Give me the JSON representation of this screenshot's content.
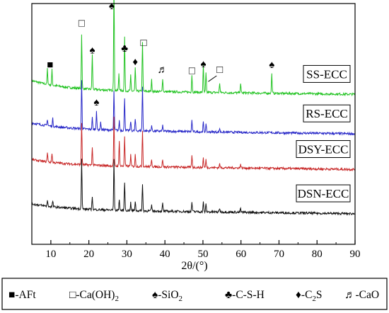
{
  "chart_data": {
    "type": "line",
    "title": "",
    "xlabel": "2θ/(°)",
    "ylabel": "",
    "xlim": [
      5,
      90
    ],
    "xticks": [
      10,
      20,
      30,
      40,
      50,
      60,
      70,
      80,
      90
    ],
    "yticks_shown": false,
    "grid": false,
    "legend_placement": "bottom",
    "series": [
      {
        "name": "SS-ECC",
        "color": "#22c322",
        "baseline": 0.8,
        "decay": 0.05,
        "peaks": [
          [
            9.1,
            0.08
          ],
          [
            10.3,
            0.08
          ],
          [
            18.1,
            0.28
          ],
          [
            20.9,
            0.18
          ],
          [
            26.6,
            0.55
          ],
          [
            27.9,
            0.09
          ],
          [
            29.4,
            0.28
          ],
          [
            31.0,
            0.08
          ],
          [
            32.2,
            0.12
          ],
          [
            34.1,
            0.26
          ],
          [
            36.5,
            0.06
          ],
          [
            39.4,
            0.07
          ],
          [
            47.1,
            0.09
          ],
          [
            50.1,
            0.14
          ],
          [
            50.8,
            0.1
          ],
          [
            54.4,
            0.05
          ],
          [
            59.9,
            0.05
          ],
          [
            68.1,
            0.1
          ]
        ]
      },
      {
        "name": "RS-ECC",
        "color": "#2828c8",
        "baseline": 0.595,
        "decay": 0.035,
        "peaks": [
          [
            9.1,
            0.035
          ],
          [
            10.5,
            0.04
          ],
          [
            18.1,
            0.25
          ],
          [
            20.9,
            0.06
          ],
          [
            22.0,
            0.1
          ],
          [
            23.1,
            0.04
          ],
          [
            26.6,
            0.2
          ],
          [
            28.0,
            0.05
          ],
          [
            29.4,
            0.17
          ],
          [
            31.0,
            0.05
          ],
          [
            32.2,
            0.06
          ],
          [
            34.1,
            0.23
          ],
          [
            36.5,
            0.03
          ],
          [
            39.4,
            0.03
          ],
          [
            47.1,
            0.06
          ],
          [
            50.1,
            0.05
          ],
          [
            50.8,
            0.04
          ],
          [
            54.4,
            0.02
          ]
        ]
      },
      {
        "name": "DSY-ECC",
        "color": "#c82828",
        "baseline": 0.41,
        "decay": 0.03,
        "peaks": [
          [
            9.1,
            0.05
          ],
          [
            10.3,
            0.05
          ],
          [
            18.1,
            0.22
          ],
          [
            20.9,
            0.09
          ],
          [
            26.6,
            0.25
          ],
          [
            28.0,
            0.13
          ],
          [
            29.4,
            0.15
          ],
          [
            31.0,
            0.06
          ],
          [
            32.2,
            0.06
          ],
          [
            34.1,
            0.19
          ],
          [
            36.5,
            0.04
          ],
          [
            39.4,
            0.04
          ],
          [
            47.1,
            0.06
          ],
          [
            50.1,
            0.05
          ],
          [
            50.8,
            0.04
          ],
          [
            54.4,
            0.02
          ],
          [
            59.9,
            0.02
          ]
        ]
      },
      {
        "name": "DSN-ECC",
        "color": "#111111",
        "baseline": 0.18,
        "decay": 0.03,
        "peaks": [
          [
            9.1,
            0.03
          ],
          [
            10.5,
            0.03
          ],
          [
            18.1,
            0.26
          ],
          [
            20.9,
            0.07
          ],
          [
            26.6,
            0.26
          ],
          [
            28.0,
            0.06
          ],
          [
            29.4,
            0.15
          ],
          [
            31.0,
            0.04
          ],
          [
            32.2,
            0.05
          ],
          [
            34.1,
            0.14
          ],
          [
            36.5,
            0.03
          ],
          [
            39.4,
            0.04
          ],
          [
            47.1,
            0.05
          ],
          [
            50.1,
            0.05
          ],
          [
            50.8,
            0.04
          ],
          [
            54.4,
            0.02
          ],
          [
            59.9,
            0.02
          ]
        ]
      }
    ],
    "sample_labels": [
      {
        "text": "SS-ECC",
        "series": 0
      },
      {
        "text": "RS-ECC",
        "series": 1
      },
      {
        "text": "DSY-ECC",
        "series": 2
      },
      {
        "text": "DSN-ECC",
        "series": 3
      }
    ],
    "phase_markers": [
      {
        "phase": "AFt",
        "symbol": "■",
        "x": 9.8,
        "y": 0.915
      },
      {
        "phase": "Ca(OH)2",
        "symbol": "□",
        "x": 18.1,
        "y": 1.13
      },
      {
        "phase": "SiO2",
        "symbol": "♠",
        "x": 20.9,
        "y": 0.99
      },
      {
        "phase": "SiO2",
        "symbol": "♠",
        "x": 26.0,
        "y": 1.22
      },
      {
        "phase": "C-S-H",
        "symbol": "♣",
        "x": 29.4,
        "y": 1.0
      },
      {
        "phase": "C2S",
        "symbol": "♦",
        "x": 32.2,
        "y": 0.93
      },
      {
        "phase": "Ca(OH)2",
        "symbol": "□",
        "x": 34.4,
        "y": 1.03
      },
      {
        "phase": "CaO",
        "symbol": "♬",
        "x": 39.4,
        "y": 0.89
      },
      {
        "phase": "Ca(OH)2",
        "symbol": "□",
        "x": 47.1,
        "y": 0.885
      },
      {
        "phase": "SiO2",
        "symbol": "♠",
        "x": 50.1,
        "y": 0.92
      },
      {
        "phase": "Ca(OH)2",
        "symbol": "□",
        "x": 54.4,
        "y": 0.89
      },
      {
        "phase": "SiO2",
        "symbol": "♠",
        "x": 68.1,
        "y": 0.915
      },
      {
        "phase": "SiO2",
        "symbol": "♠",
        "x": 22.0,
        "y": 0.72
      }
    ],
    "legend": [
      {
        "symbol": "■",
        "text": "-AFt"
      },
      {
        "symbol": "□",
        "text": "-Ca(OH)",
        "sub": "2"
      },
      {
        "symbol": "♠",
        "text": "-SiO",
        "sub": "2"
      },
      {
        "symbol": "♣",
        "text": "-C-S-H"
      },
      {
        "symbol": "♦",
        "text": "-C",
        "sub": "2",
        "tail": "S"
      },
      {
        "symbol": "♬",
        "text": "-CaO"
      }
    ]
  }
}
